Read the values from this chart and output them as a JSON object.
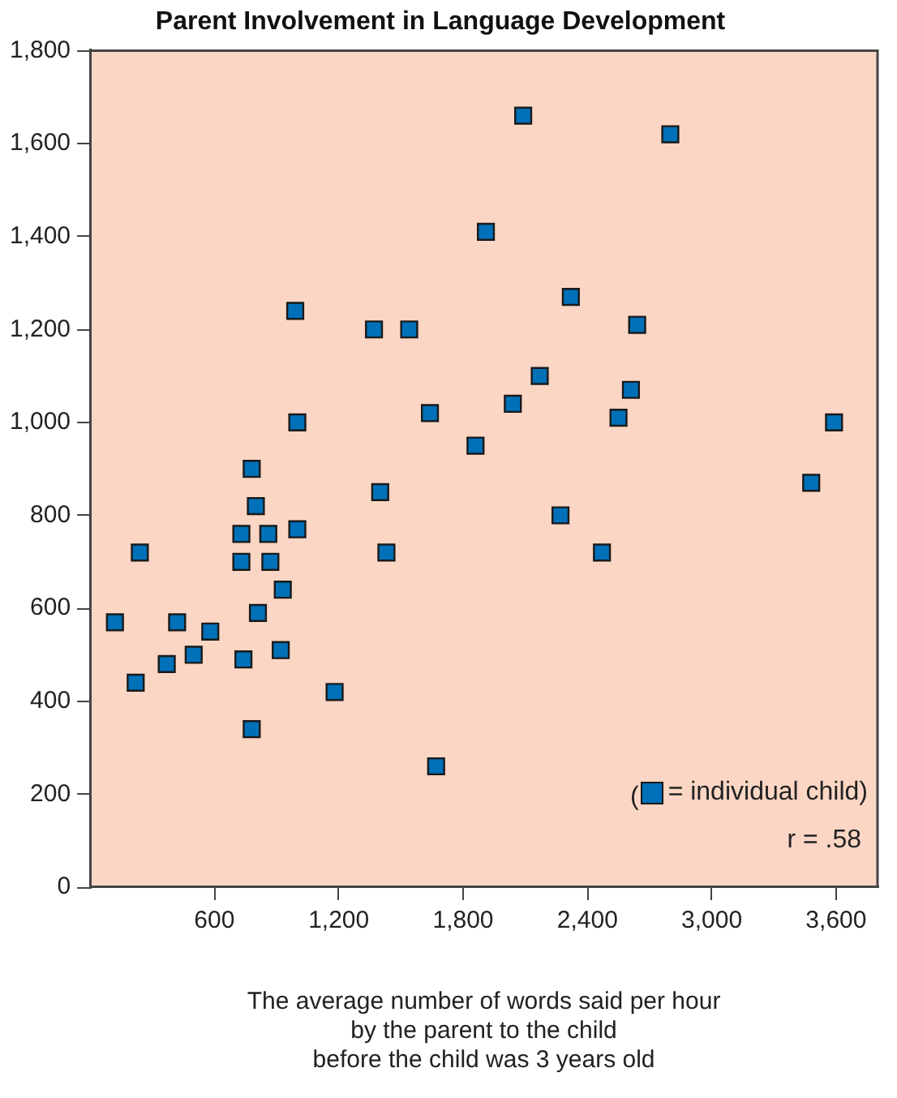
{
  "chart_data": {
    "type": "scatter",
    "title": "Parent Involvement in Language Development",
    "xlabel": "The average number of words said per hour\nby the parent to the child\nbefore the child was 3 years old",
    "xlim": [
      0,
      3800
    ],
    "xticks": [
      600,
      {
        "value": 1200,
        "label": "1,200"
      },
      {
        "value": 1800,
        "label": "1,800"
      },
      {
        "value": 2400,
        "label": "2,400"
      },
      {
        "value": 3000,
        "label": "3,000"
      },
      {
        "value": 3600,
        "label": "3,600"
      }
    ],
    "ylim": [
      0,
      1800
    ],
    "yticks": [
      0,
      200,
      400,
      600,
      800,
      {
        "value": 1000,
        "label": "1,000"
      },
      {
        "value": 1200,
        "label": "1,200"
      },
      {
        "value": 1400,
        "label": "1,400"
      },
      {
        "value": 1600,
        "label": "1,600"
      },
      {
        "value": 1800,
        "label": "1,800"
      }
    ],
    "marker": "square",
    "legend": "bottom right",
    "legend_title": "(",
    "grid": false,
    "annotations": [
      "r = .58"
    ],
    "series": [
      {
        "name": "= individual child)",
        "color": "#0070b8",
        "x": [
          780,
          800,
          730,
          860,
          1000,
          240,
          730,
          870,
          930,
          120,
          420,
          580,
          810,
          500,
          370,
          740,
          920,
          220,
          1180,
          780,
          1670,
          1400,
          1430,
          990,
          1000,
          1370,
          1540,
          1640,
          1860,
          2090,
          2800,
          1910,
          2320,
          2640,
          2170,
          2610,
          2040,
          2550,
          3590,
          3480,
          2270,
          2470
        ],
        "values": [
          900,
          820,
          760,
          760,
          770,
          720,
          700,
          700,
          640,
          570,
          570,
          550,
          590,
          500,
          480,
          490,
          510,
          440,
          420,
          340,
          260,
          850,
          720,
          1240,
          1000,
          1200,
          1200,
          1020,
          950,
          1660,
          1620,
          1410,
          1270,
          1210,
          1100,
          1070,
          1040,
          1010,
          1000,
          870,
          800,
          720
        ]
      }
    ]
  }
}
